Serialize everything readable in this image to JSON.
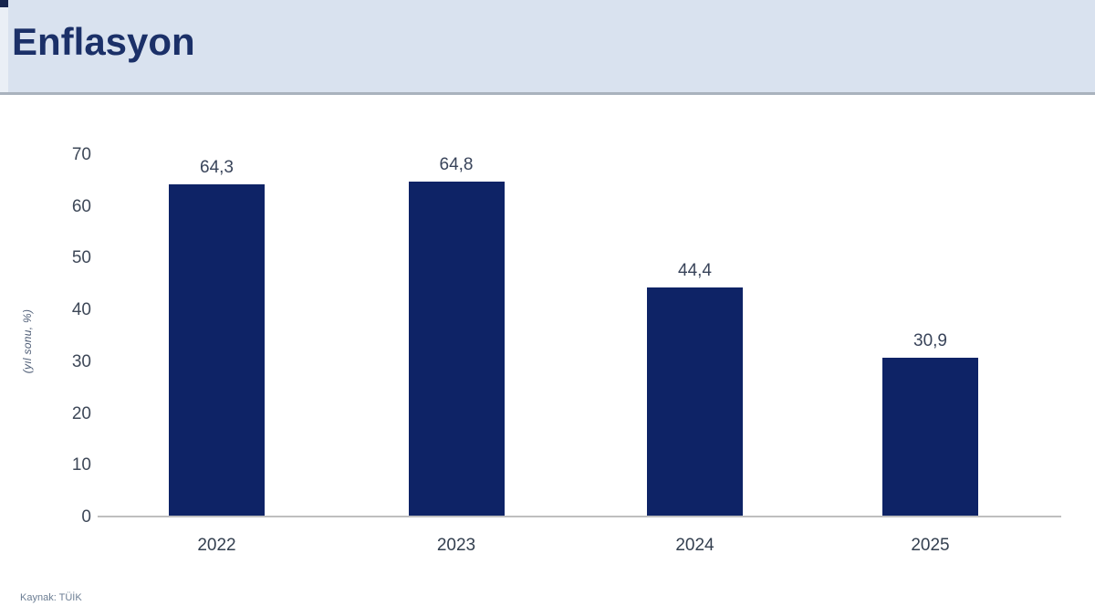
{
  "header": {
    "title": "Enflasyon"
  },
  "source": "Kaynak: TÜİK",
  "chart_data": {
    "type": "bar",
    "title": "Enflasyon",
    "categories": [
      "2022",
      "2023",
      "2024",
      "2025"
    ],
    "values": [
      64.3,
      64.8,
      44.4,
      30.9
    ],
    "value_labels": [
      "64,3",
      "64,8",
      "44,4",
      "30,9"
    ],
    "xlabel": "",
    "ylabel": "(yıl sonu, %)",
    "ylim": [
      0,
      70
    ],
    "yticks": [
      0,
      10,
      20,
      30,
      40,
      50,
      60,
      70
    ],
    "grid": false,
    "legend": false,
    "bar_color": "#0e2366",
    "axis_line_color": "#bfbfbf"
  }
}
